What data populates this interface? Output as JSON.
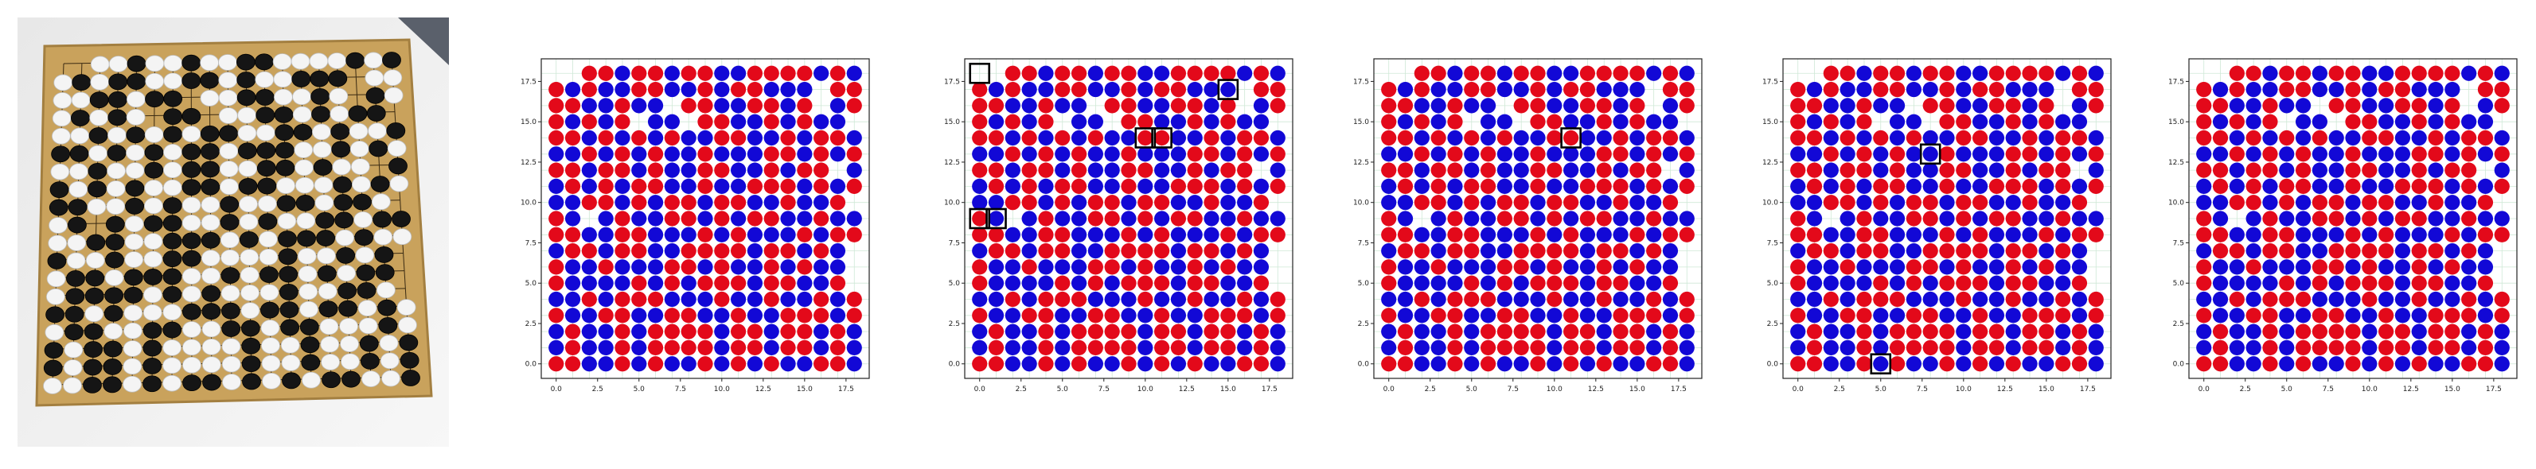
{
  "photo": {
    "board_icon": "go-board-photo-icon"
  },
  "chart_data": [
    {
      "type": "scatter",
      "xlim": [
        -0.9,
        18.9
      ],
      "ylim": [
        -0.9,
        18.9
      ],
      "xticks": [
        "0.0",
        "2.5",
        "5.0",
        "7.5",
        "10.0",
        "12.5",
        "15.0",
        "17.5"
      ],
      "yticks": [
        "0.0",
        "2.5",
        "5.0",
        "7.5",
        "10.0",
        "12.5",
        "15.0",
        "17.5"
      ],
      "grid": true,
      "series": [
        {
          "color": "#e3091a"
        },
        {
          "color": "#1208d6"
        }
      ],
      "highlights": []
    },
    {
      "type": "scatter",
      "xlim": [
        -0.9,
        18.9
      ],
      "ylim": [
        -0.9,
        18.9
      ],
      "xticks": [
        "0.0",
        "2.5",
        "5.0",
        "7.5",
        "10.0",
        "12.5",
        "15.0",
        "17.5"
      ],
      "yticks": [
        "0.0",
        "2.5",
        "5.0",
        "7.5",
        "10.0",
        "12.5",
        "15.0",
        "17.5"
      ],
      "grid": true,
      "series": [
        {
          "color": "#e3091a"
        },
        {
          "color": "#1208d6"
        }
      ],
      "highlights": [
        [
          0,
          18
        ],
        [
          10,
          14
        ],
        [
          15,
          17
        ],
        [
          0,
          9
        ],
        [
          1,
          9
        ],
        [
          11,
          14
        ]
      ]
    },
    {
      "type": "scatter",
      "xlim": [
        -0.9,
        18.9
      ],
      "ylim": [
        -0.9,
        18.9
      ],
      "xticks": [
        "0.0",
        "2.5",
        "5.0",
        "7.5",
        "10.0",
        "12.5",
        "15.0",
        "17.5"
      ],
      "yticks": [
        "0.0",
        "2.5",
        "5.0",
        "7.5",
        "10.0",
        "12.5",
        "15.0",
        "17.5"
      ],
      "grid": true,
      "series": [
        {
          "color": "#e3091a"
        },
        {
          "color": "#1208d6"
        }
      ],
      "highlights": [
        [
          11,
          14
        ]
      ]
    },
    {
      "type": "scatter",
      "xlim": [
        -0.9,
        18.9
      ],
      "ylim": [
        -0.9,
        18.9
      ],
      "xticks": [
        "0.0",
        "2.5",
        "5.0",
        "7.5",
        "10.0",
        "12.5",
        "15.0",
        "17.5"
      ],
      "yticks": [
        "0.0",
        "2.5",
        "5.0",
        "7.5",
        "10.0",
        "12.5",
        "15.0",
        "17.5"
      ],
      "grid": true,
      "series": [
        {
          "color": "#e3091a"
        },
        {
          "color": "#1208d6"
        }
      ],
      "highlights": [
        [
          8,
          13
        ],
        [
          5,
          0
        ]
      ]
    },
    {
      "type": "scatter",
      "xlim": [
        -0.9,
        18.9
      ],
      "ylim": [
        -0.9,
        18.9
      ],
      "xticks": [
        "0.0",
        "2.5",
        "5.0",
        "7.5",
        "10.0",
        "12.5",
        "15.0",
        "17.5"
      ],
      "yticks": [
        "0.0",
        "2.5",
        "5.0",
        "7.5",
        "10.0",
        "12.5",
        "15.0",
        "17.5"
      ],
      "grid": true,
      "series": [
        {
          "color": "#e3091a"
        },
        {
          "color": "#1208d6"
        }
      ],
      "highlights": []
    }
  ],
  "board_rows": [
    "..RRBRRBRRBBRRRRBRB",
    "RBRBBRRBBRBRRBBB.RR",
    "RRBBRBB.RRBBRRBR.BR",
    "RBRBR.BB.RRBBRBRBB.",
    "RRBRBRBRBBRRBBRBRRB",
    "BBRBRBRBBRBBBRRBRBR",
    "RRBRRBRBBRRBBRBRR.B",
    "BRBRBRRBBRBBRRRBRBR",
    "BBRRBRBRRBRRBBRBBR.",
    "RB.BRBBRRBRBRRBBRBB",
    "RRBBRRBBBRBRBBBRBRR",
    "BRRBRRBBRRRRBRRBRB.",
    "RBBRBBBRRBRBBRBRBB.",
    "RBBBBRBRBRRRBRRBBR.",
    "BBRBRRRBBBRBBRBBRBR",
    "RBBRRBBRRBBRBBRRRBR",
    "BRBBRBRRRRBRRBRRBRB",
    "BRBBRBRRRRBRRBRRBRB",
    "RRBBRBRBBRBRBRBBRRB"
  ]
}
